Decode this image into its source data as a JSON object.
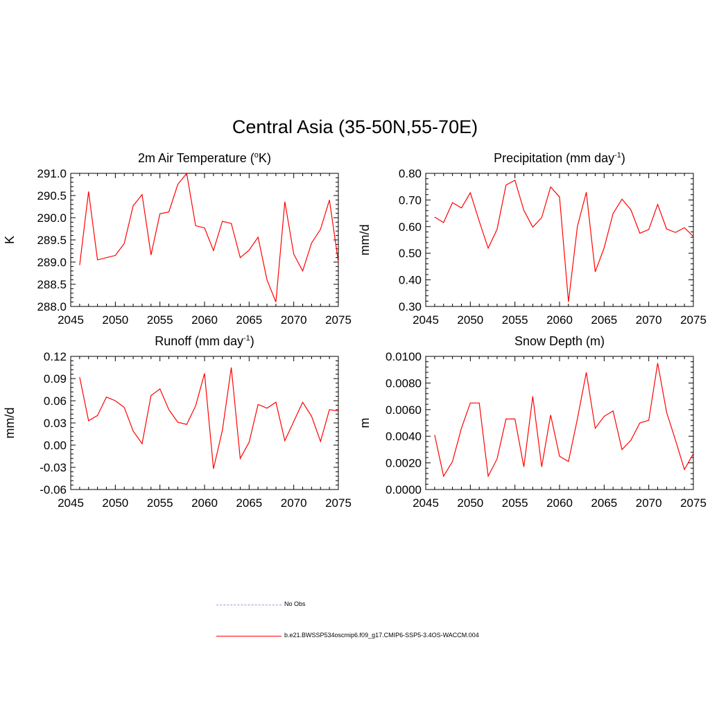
{
  "title": "Central Asia (35-50N,55-70E)",
  "colors": {
    "series": "#ff0000",
    "axis": "#000000",
    "obs": "#9999dd"
  },
  "legend": {
    "items": [
      {
        "label": "No Obs",
        "style": "dashed",
        "color": "#9999dd"
      },
      {
        "label": "b.e21.BWSSP534oscmip6.f09_g17.CMIP6-SSP5-3.4OS-WACCM.004",
        "style": "solid",
        "color": "#ff0000"
      }
    ]
  },
  "chart_data": [
    {
      "type": "line",
      "title": "2m Air Temperature",
      "title_unit": "K",
      "title_sup": "o",
      "ylabel": "K",
      "xlabel": "",
      "xlim": [
        2045,
        2075
      ],
      "ylim": [
        288.0,
        291.0
      ],
      "xticks": [
        2045,
        2050,
        2055,
        2060,
        2065,
        2070,
        2075
      ],
      "yticks": [
        "288.0",
        "288.5",
        "289.0",
        "289.5",
        "290.0",
        "290.5",
        "291.0"
      ],
      "x": [
        2046,
        2047,
        2048,
        2049,
        2050,
        2051,
        2052,
        2053,
        2054,
        2055,
        2056,
        2057,
        2058,
        2059,
        2060,
        2061,
        2062,
        2063,
        2064,
        2065,
        2066,
        2067,
        2068,
        2069,
        2070,
        2071,
        2072,
        2073,
        2074,
        2075
      ],
      "series": [
        {
          "name": "b.e21.BWSSP534oscmip6.f09_g17.CMIP6-SSP5-3.4OS-WACCM.004",
          "values": [
            288.93,
            290.59,
            289.05,
            289.1,
            289.15,
            289.42,
            290.27,
            290.52,
            289.16,
            290.09,
            290.13,
            290.75,
            291.0,
            289.82,
            289.77,
            289.26,
            289.92,
            289.87,
            289.1,
            289.27,
            289.56,
            288.6,
            288.1,
            290.36,
            289.18,
            288.8,
            289.43,
            289.74,
            290.4,
            289.0
          ]
        }
      ]
    },
    {
      "type": "line",
      "title": "Precipitation (mm day",
      "title_sup": "-1",
      "title_tail": ")",
      "ylabel": "mm/d",
      "xlabel": "",
      "xlim": [
        2045,
        2075
      ],
      "ylim": [
        0.3,
        0.8
      ],
      "xticks": [
        2045,
        2050,
        2055,
        2060,
        2065,
        2070,
        2075
      ],
      "yticks": [
        "0.30",
        "0.40",
        "0.50",
        "0.60",
        "0.70",
        "0.80"
      ],
      "x": [
        2046,
        2047,
        2048,
        2049,
        2050,
        2051,
        2052,
        2053,
        2054,
        2055,
        2056,
        2057,
        2058,
        2059,
        2060,
        2061,
        2062,
        2063,
        2064,
        2065,
        2066,
        2067,
        2068,
        2069,
        2070,
        2071,
        2072,
        2073,
        2074,
        2075
      ],
      "series": [
        {
          "name": "b.e21.BWSSP534oscmip6.f09_g17.CMIP6-SSP5-3.4OS-WACCM.004",
          "values": [
            0.636,
            0.615,
            0.69,
            0.67,
            0.727,
            0.62,
            0.519,
            0.59,
            0.756,
            0.774,
            0.661,
            0.598,
            0.634,
            0.749,
            0.711,
            0.317,
            0.6,
            0.729,
            0.43,
            0.52,
            0.649,
            0.703,
            0.663,
            0.575,
            0.589,
            0.683,
            0.591,
            0.578,
            0.596,
            0.563
          ]
        }
      ]
    },
    {
      "type": "line",
      "title": "Runoff (mm day",
      "title_sup": "-1",
      "title_tail": ")",
      "ylabel": "mm/d",
      "xlabel": "",
      "xlim": [
        2045,
        2075
      ],
      "ylim": [
        -0.06,
        0.12
      ],
      "xticks": [
        2045,
        2050,
        2055,
        2060,
        2065,
        2070,
        2075
      ],
      "yticks": [
        "-0.06",
        "-0.03",
        "0.00",
        "0.03",
        "0.06",
        "0.09",
        "0.12"
      ],
      "x": [
        2046,
        2047,
        2048,
        2049,
        2050,
        2051,
        2052,
        2053,
        2054,
        2055,
        2056,
        2057,
        2058,
        2059,
        2060,
        2061,
        2062,
        2063,
        2064,
        2065,
        2066,
        2067,
        2068,
        2069,
        2070,
        2071,
        2072,
        2073,
        2074,
        2075
      ],
      "series": [
        {
          "name": "b.e21.BWSSP534oscmip6.f09_g17.CMIP6-SSP5-3.4OS-WACCM.004",
          "values": [
            0.092,
            0.033,
            0.04,
            0.065,
            0.06,
            0.051,
            0.019,
            0.002,
            0.067,
            0.076,
            0.048,
            0.031,
            0.028,
            0.053,
            0.097,
            -0.032,
            0.02,
            0.105,
            -0.018,
            0.004,
            0.055,
            0.05,
            0.058,
            0.006,
            0.032,
            0.058,
            0.039,
            0.005,
            0.048,
            0.046
          ]
        }
      ]
    },
    {
      "type": "line",
      "title": "Snow Depth (m)",
      "ylabel": "m",
      "xlabel": "",
      "xlim": [
        2045,
        2075
      ],
      "ylim": [
        0.0,
        0.01
      ],
      "xticks": [
        2045,
        2050,
        2055,
        2060,
        2065,
        2070,
        2075
      ],
      "yticks": [
        "0.0000",
        "0.0020",
        "0.0040",
        "0.0060",
        "0.0080",
        "0.0100"
      ],
      "x": [
        2046,
        2047,
        2048,
        2049,
        2050,
        2051,
        2052,
        2053,
        2054,
        2055,
        2056,
        2057,
        2058,
        2059,
        2060,
        2061,
        2062,
        2063,
        2064,
        2065,
        2066,
        2067,
        2068,
        2069,
        2070,
        2071,
        2072,
        2073,
        2074,
        2075
      ],
      "series": [
        {
          "name": "b.e21.BWSSP534oscmip6.f09_g17.CMIP6-SSP5-3.4OS-WACCM.004",
          "values": [
            0.0041,
            0.001,
            0.0021,
            0.0046,
            0.0065,
            0.0065,
            0.001,
            0.0023,
            0.0053,
            0.0053,
            0.0017,
            0.007,
            0.0017,
            0.0056,
            0.0025,
            0.0021,
            0.0053,
            0.0088,
            0.0046,
            0.0055,
            0.0059,
            0.003,
            0.0037,
            0.005,
            0.0052,
            0.0095,
            0.0058,
            0.0037,
            0.0015,
            0.0027
          ]
        }
      ]
    }
  ]
}
